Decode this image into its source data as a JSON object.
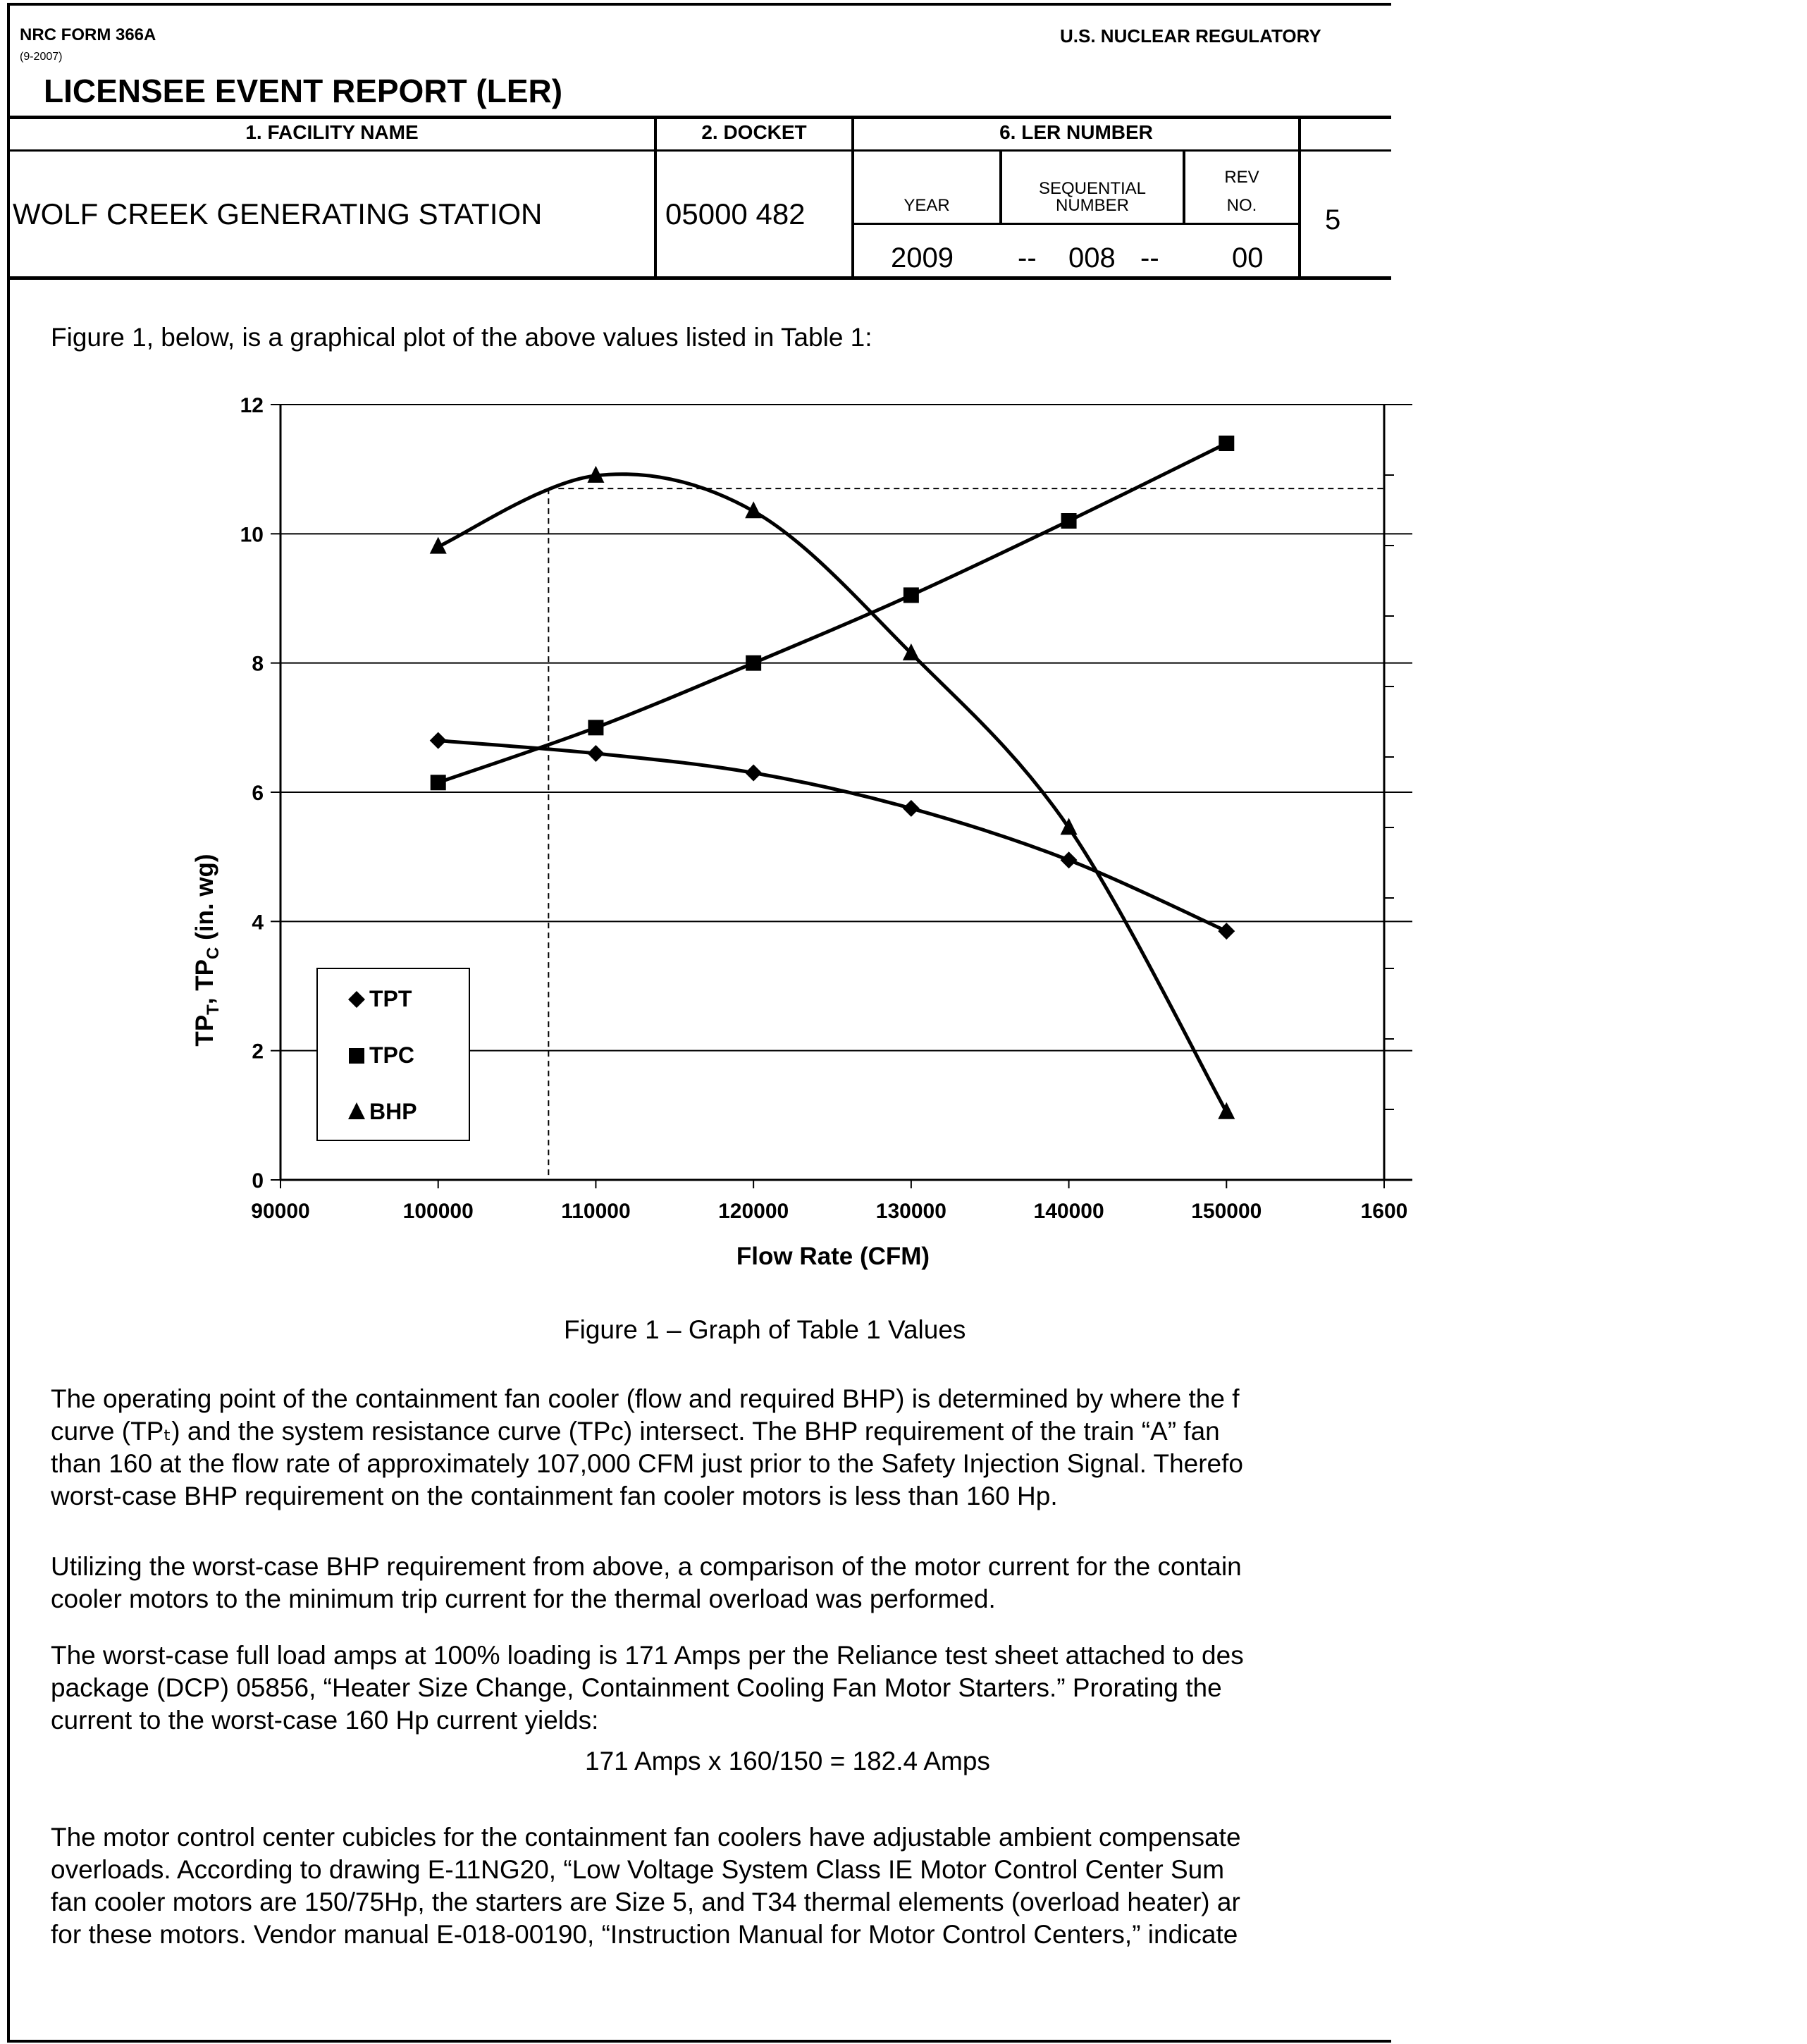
{
  "header": {
    "form_number": "NRC FORM 366A",
    "form_revision": "(9-2007)",
    "agency": "U.S. NUCLEAR REGULATORY",
    "title": "LICENSEE EVENT REPORT (LER)"
  },
  "table": {
    "facility_label": "1. FACILITY NAME",
    "docket_label": "2. DOCKET",
    "ler_label": "6. LER NUMBER",
    "facility_name": "WOLF CREEK GENERATING STATION",
    "docket": "05000  482",
    "year_label": "YEAR",
    "sequential_label_1": "SEQUENTIAL",
    "sequential_label_2": "NUMBER",
    "rev_label_1": "REV",
    "rev_label_2": "NO.",
    "year": "2009",
    "sep1": "--",
    "sequential": "008",
    "sep2": "--",
    "rev": "00",
    "page": "5"
  },
  "intro": "Figure 1, below, is a graphical plot of the above values listed in Table 1:",
  "chart_data": {
    "type": "scatter",
    "xlabel": "Flow Rate (CFM)",
    "ylabel_parts": [
      "TP",
      "T",
      ", TP",
      "C",
      " (in. wg)"
    ],
    "xlim": [
      90000,
      160000
    ],
    "ylim": [
      0,
      12
    ],
    "x_ticks": [
      "90000",
      "100000",
      "110000",
      "120000",
      "130000",
      "140000",
      "150000",
      "1600"
    ],
    "y_ticks": [
      "0",
      "2",
      "4",
      "6",
      "8",
      "10",
      "12"
    ],
    "grid": "horizontal",
    "legend_position": "bottom-left",
    "series": [
      {
        "name": "TPT",
        "marker": "diamond",
        "x": [
          100000,
          110000,
          120000,
          130000,
          140000,
          150000
        ],
        "y": [
          6.8,
          6.6,
          6.3,
          5.75,
          4.95,
          3.85
        ]
      },
      {
        "name": "TPC",
        "marker": "square",
        "x": [
          100000,
          110000,
          120000,
          130000,
          140000,
          150000
        ],
        "y": [
          6.15,
          7.0,
          8.0,
          9.05,
          10.2,
          11.4
        ]
      },
      {
        "name": "BHP",
        "marker": "triangle",
        "x": [
          100000,
          110000,
          120000,
          130000,
          140000,
          150000
        ],
        "y": [
          9.8,
          10.9,
          10.35,
          8.15,
          5.45,
          1.05
        ]
      }
    ],
    "reference_lines": {
      "x": 107000,
      "y": 10.7
    }
  },
  "caption": "Figure 1 – Graph of Table 1 Values",
  "paragraphs": [
    {
      "lines": [
        "The operating point of the containment fan cooler (flow and required BHP) is determined by where the f",
        "curve (TPₜ) and the system resistance curve (TPc) intersect.  The BHP requirement of the train “A” fan",
        "than 160 at the flow rate of approximately 107,000 CFM just prior to the Safety Injection Signal.  Therefo",
        "worst-case BHP requirement on the containment fan cooler motors is less than 160 Hp."
      ]
    },
    {
      "lines": [
        "Utilizing the worst-case BHP requirement from above, a comparison of the motor current for the contain",
        "cooler motors to the minimum trip current for the thermal overload was performed."
      ]
    },
    {
      "lines": [
        "The worst-case full load amps at 100% loading is 171 Amps per the Reliance test sheet attached to des",
        "package (DCP) 05856, “Heater Size Change, Containment Cooling Fan Motor Starters.”  Prorating the",
        "current to the worst-case 160 Hp current yields:"
      ]
    },
    {
      "lines": [
        "The motor control center cubicles for the containment fan coolers have adjustable ambient compensate",
        "overloads.  According to drawing E-11NG20, “Low Voltage System Class IE Motor Control Center Sum",
        "fan cooler motors are 150/75Hp, the starters are Size 5, and T34 thermal elements (overload heater) ar",
        "for these motors.  Vendor manual E-018-00190, “Instruction Manual for Motor Control Centers,” indicate"
      ]
    }
  ],
  "equation": "171 Amps x 160/150 = 182.4 Amps"
}
